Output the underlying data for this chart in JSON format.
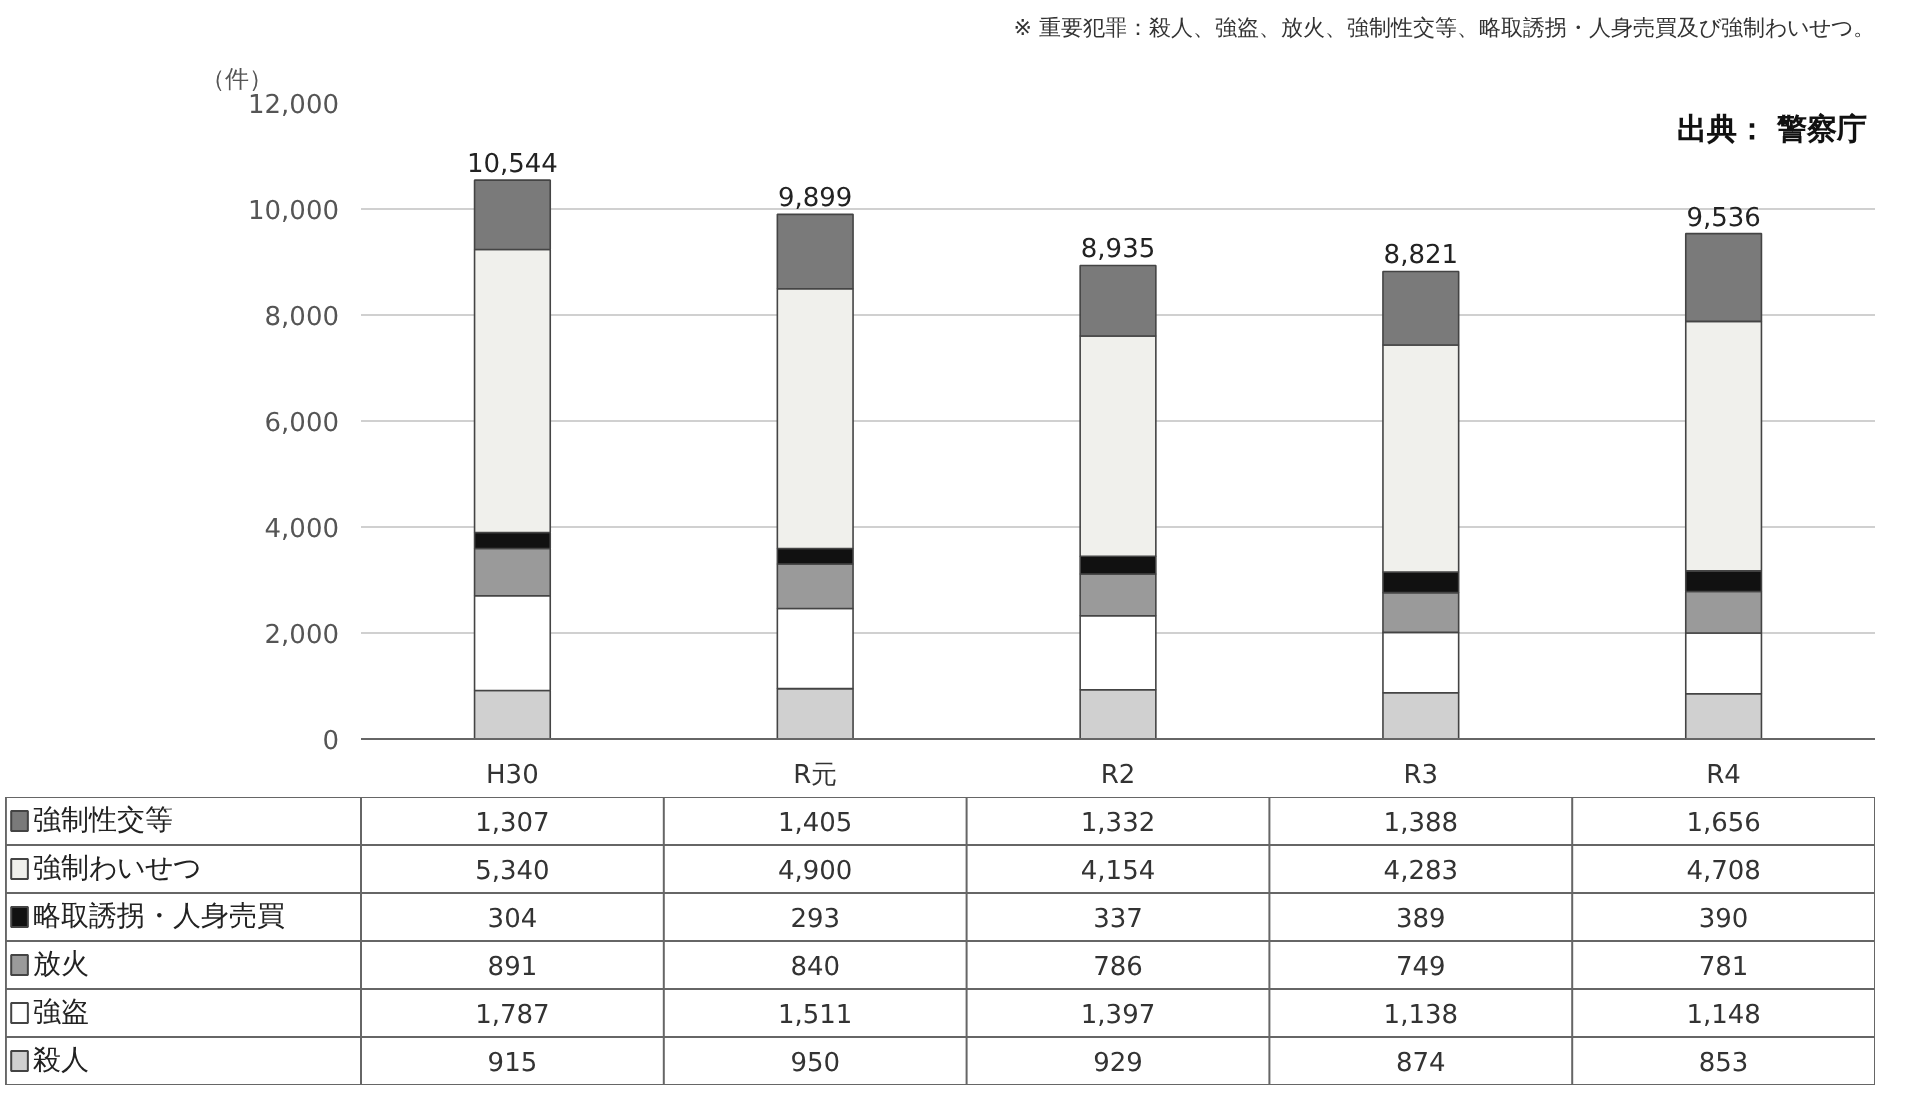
{
  "chart_data": {
    "type": "bar",
    "stacked": true,
    "ylabel": "（件）",
    "annotations": [
      "※ 重要犯罪：殺人、強盗、放火、強制性交等、略取誘拐・人身売買及び強制わいせつ。",
      "出典： 警察庁"
    ],
    "categories": [
      "H30",
      "R元",
      "R2",
      "R3",
      "R4"
    ],
    "series": [
      {
        "name": "殺人",
        "color": "#d0d0d0",
        "values": [
          915,
          950,
          929,
          874,
          853
        ],
        "value_labels": [
          "915",
          "950",
          "929",
          "874",
          "853"
        ]
      },
      {
        "name": "強盗",
        "color": "#ffffff",
        "values": [
          1787,
          1511,
          1397,
          1138,
          1148
        ],
        "value_labels": [
          "1,787",
          "1,511",
          "1,397",
          "1,138",
          "1,148"
        ]
      },
      {
        "name": "放火",
        "color": "#9a9a9a",
        "values": [
          891,
          840,
          786,
          749,
          781
        ],
        "value_labels": [
          "891",
          "840",
          "786",
          "749",
          "781"
        ]
      },
      {
        "name": "略取誘拐・人身売買",
        "color": "#111111",
        "values": [
          304,
          293,
          337,
          389,
          390
        ],
        "value_labels": [
          "304",
          "293",
          "337",
          "389",
          "390"
        ]
      },
      {
        "name": "強制わいせつ",
        "color": "#f0f0ec",
        "values": [
          5340,
          4900,
          4154,
          4283,
          4708
        ],
        "value_labels": [
          "5,340",
          "4,900",
          "4,154",
          "4,283",
          "4,708"
        ]
      },
      {
        "name": "強制性交等",
        "color": "#7a7a7a",
        "values": [
          1307,
          1405,
          1332,
          1388,
          1656
        ],
        "value_labels": [
          "1,307",
          "1,405",
          "1,332",
          "1,388",
          "1,656"
        ]
      }
    ],
    "totals": [
      "10,544",
      "9,899",
      "8,935",
      "8,821",
      "9,536"
    ],
    "ylim": [
      0,
      12000
    ],
    "yticks": [
      0,
      {
        "value": 2000,
        "label": "2,000"
      },
      {
        "value": 4000,
        "label": "4,000"
      },
      {
        "value": 6000,
        "label": "6,000"
      },
      {
        "value": 8000,
        "label": "8,000"
      },
      {
        "value": 10000,
        "label": "10,000"
      },
      {
        "value": 12000,
        "label": "12,000"
      }
    ],
    "grid": "y",
    "legend": "bottom left"
  }
}
